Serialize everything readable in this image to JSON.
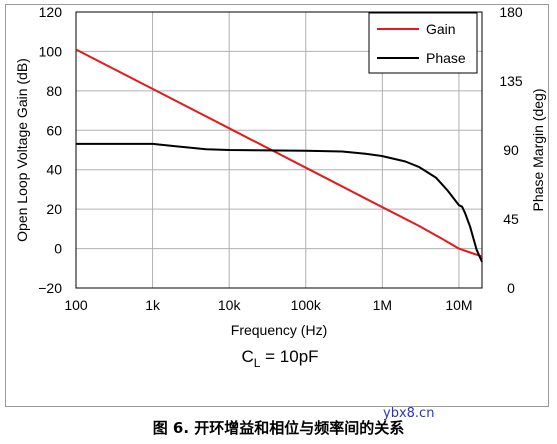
{
  "caption": "图 6. 开环增益和相位与频率间的关系",
  "watermark": "ybx8.cn",
  "annotation": {
    "main": "C",
    "sub": "L",
    "rest": " = 10pF"
  },
  "colors": {
    "gain": "#e31a1c",
    "phase": "#000000",
    "grid": "#b0b0b0"
  },
  "chart_data": {
    "type": "line",
    "xlabel": "Frequency (Hz)",
    "ylabel": "Open Loop Voltage Gain (dB)",
    "y2label": "Phase Margin (deg)",
    "xscale": "log",
    "xlim": [
      100,
      20000000
    ],
    "ylim": [
      -20,
      120
    ],
    "y2lim": [
      0,
      180
    ],
    "x_ticks": [
      {
        "value": 100,
        "label": "100"
      },
      {
        "value": 1000,
        "label": "1k"
      },
      {
        "value": 10000,
        "label": "10k"
      },
      {
        "value": 100000,
        "label": "100k"
      },
      {
        "value": 1000000,
        "label": "1M"
      },
      {
        "value": 10000000,
        "label": "10M"
      }
    ],
    "y_ticks": [
      -20,
      0,
      20,
      40,
      60,
      80,
      100,
      120
    ],
    "y_tick_labels": [
      "−20",
      "0",
      "20",
      "40",
      "60",
      "80",
      "100",
      "120"
    ],
    "y2_ticks": [
      0,
      45,
      90,
      135,
      180
    ],
    "grid": true,
    "legend": "top-right",
    "series": [
      {
        "name": "Gain",
        "axis": "left",
        "x": [
          100,
          1000,
          10000,
          100000,
          1000000,
          3000000,
          6000000,
          10000000,
          14000000,
          20000000
        ],
        "y": [
          101,
          81,
          61,
          41,
          21,
          11.5,
          5,
          0,
          -2,
          -4
        ]
      },
      {
        "name": "Phase",
        "axis": "right",
        "x": [
          100,
          1000,
          2000,
          5000,
          10000,
          100000,
          300000,
          600000,
          1000000,
          2000000,
          3000000,
          5000000,
          7000000,
          9000000,
          10000000,
          11000000,
          12000000,
          14000000,
          17000000,
          20000000
        ],
        "y": [
          94,
          94,
          92.5,
          90.5,
          90,
          89.5,
          89,
          87.5,
          86,
          82.5,
          79,
          72,
          64,
          57,
          54,
          53,
          49,
          40,
          25,
          17
        ]
      }
    ]
  }
}
